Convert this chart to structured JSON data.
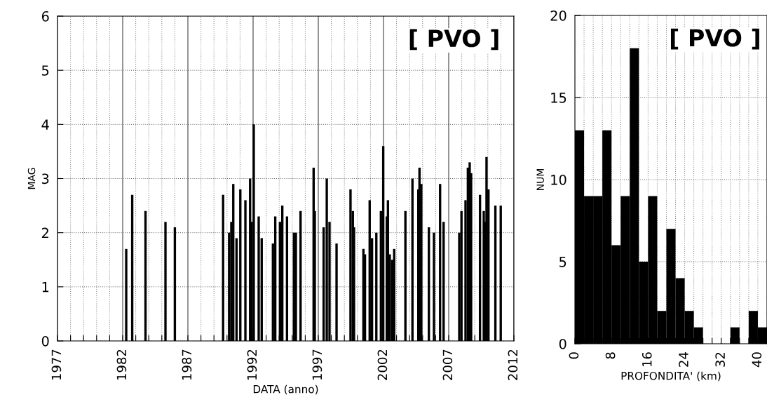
{
  "chart_data": [
    {
      "type": "bar",
      "xlabel": "DATA (anno)",
      "ylabel": "MAG",
      "annotations": [
        "[ PVO ]"
      ],
      "color": "#000000",
      "x": [
        1982.27,
        1982.73,
        1983.75,
        1985.28,
        1986.0,
        1989.7,
        1990.16,
        1990.33,
        1990.48,
        1990.73,
        1991.02,
        1991.41,
        1991.77,
        1991.88,
        1992.05,
        1992.43,
        1992.66,
        1993.52,
        1993.7,
        1994.06,
        1994.24,
        1994.6,
        1995.13,
        1995.28,
        1995.64,
        1996.64,
        1996.73,
        1997.41,
        1997.65,
        1997.86,
        1998.4,
        1999.47,
        1999.65,
        1999.74,
        2000.46,
        2000.58,
        2000.94,
        2001.12,
        2001.45,
        2001.8,
        2001.98,
        2002.25,
        2002.34,
        2002.48,
        2002.66,
        2002.82,
        2003.68,
        2004.22,
        2004.67,
        2004.76,
        2004.9,
        2005.48,
        2005.87,
        2006.34,
        2006.61,
        2007.81,
        2007.98,
        2008.29,
        2008.47,
        2008.61,
        2008.72,
        2009.4,
        2009.69,
        2009.78,
        2009.9,
        2010.05,
        2010.58,
        2010.99
      ],
      "values": [
        1.7,
        2.7,
        2.4,
        2.2,
        2.1,
        2.7,
        2.0,
        2.2,
        2.9,
        1.9,
        2.8,
        2.6,
        3.0,
        2.2,
        4.0,
        2.3,
        1.9,
        1.8,
        2.3,
        2.2,
        2.5,
        2.3,
        2.0,
        2.0,
        2.4,
        3.2,
        2.4,
        2.1,
        3.0,
        2.2,
        1.8,
        2.8,
        2.4,
        2.1,
        1.7,
        1.6,
        2.6,
        1.9,
        2.0,
        2.4,
        3.6,
        2.3,
        2.6,
        1.6,
        1.5,
        1.7,
        2.4,
        3.0,
        2.8,
        3.2,
        2.9,
        2.1,
        2.0,
        2.9,
        2.2,
        2.0,
        2.4,
        2.6,
        3.2,
        3.3,
        3.1,
        2.7,
        2.4,
        2.2,
        3.4,
        2.8,
        2.5,
        2.5
      ],
      "xlim": [
        1977,
        2012
      ],
      "ylim": [
        0,
        6
      ],
      "yticks": [
        0,
        1,
        2,
        3,
        4,
        5,
        6
      ],
      "xticks": [
        1977,
        {
          "value": 1978,
          "label": null
        },
        {
          "value": 1979,
          "label": null
        },
        {
          "value": 1980,
          "label": null
        },
        {
          "value": 1981,
          "label": null
        },
        1982,
        {
          "value": 1983,
          "label": null
        },
        {
          "value": 1984,
          "label": null
        },
        {
          "value": 1985,
          "label": null
        },
        {
          "value": 1986,
          "label": null
        },
        1987,
        {
          "value": 1988,
          "label": null
        },
        {
          "value": 1989,
          "label": null
        },
        {
          "value": 1990,
          "label": null
        },
        {
          "value": 1991,
          "label": null
        },
        1992,
        {
          "value": 1993,
          "label": null
        },
        {
          "value": 1994,
          "label": null
        },
        {
          "value": 1995,
          "label": null
        },
        {
          "value": 1996,
          "label": null
        },
        1997,
        {
          "value": 1998,
          "label": null
        },
        {
          "value": 1999,
          "label": null
        },
        {
          "value": 2000,
          "label": null
        },
        {
          "value": 2001,
          "label": null
        },
        2002,
        {
          "value": 2003,
          "label": null
        },
        {
          "value": 2004,
          "label": null
        },
        {
          "value": 2005,
          "label": null
        },
        {
          "value": 2006,
          "label": null
        },
        2007,
        {
          "value": 2008,
          "label": null
        },
        {
          "value": 2009,
          "label": null
        },
        {
          "value": 2010,
          "label": null
        },
        {
          "value": 2011,
          "label": null
        },
        2012
      ],
      "grid": true,
      "legend": false
    },
    {
      "type": "histogram",
      "xlabel": "PROFONDITA' (km)",
      "ylabel": "NUM",
      "annotations": [
        "[ PVO ]"
      ],
      "color": "#000000",
      "bins": [
        0,
        2,
        4,
        6,
        8,
        10,
        12,
        14,
        16,
        18,
        20,
        22,
        24,
        26,
        28,
        30,
        32,
        34,
        36,
        38,
        40,
        42
      ],
      "values": [
        13,
        9,
        9,
        13,
        6,
        9,
        18,
        5,
        9,
        2,
        7,
        4,
        2,
        1,
        0,
        0,
        0,
        1,
        0,
        2,
        1
      ],
      "xlim": [
        0,
        42
      ],
      "ylim": [
        0,
        20
      ],
      "yticks": [
        0,
        5,
        10,
        15,
        20
      ],
      "xticks": [
        0,
        {
          "value": 2,
          "label": null
        },
        {
          "value": 4,
          "label": null
        },
        {
          "value": 6,
          "label": null
        },
        8,
        {
          "value": 10,
          "label": null
        },
        {
          "value": 12,
          "label": null
        },
        {
          "value": 14,
          "label": null
        },
        16,
        {
          "value": 18,
          "label": null
        },
        {
          "value": 20,
          "label": null
        },
        {
          "value": 22,
          "label": null
        },
        24,
        {
          "value": 26,
          "label": null
        },
        {
          "value": 28,
          "label": null
        },
        {
          "value": 30,
          "label": null
        },
        32,
        {
          "value": 34,
          "label": null
        },
        {
          "value": 36,
          "label": null
        },
        {
          "value": 38,
          "label": null
        },
        40,
        {
          "value": 42,
          "label": null
        }
      ],
      "grid": true,
      "legend": false
    }
  ]
}
